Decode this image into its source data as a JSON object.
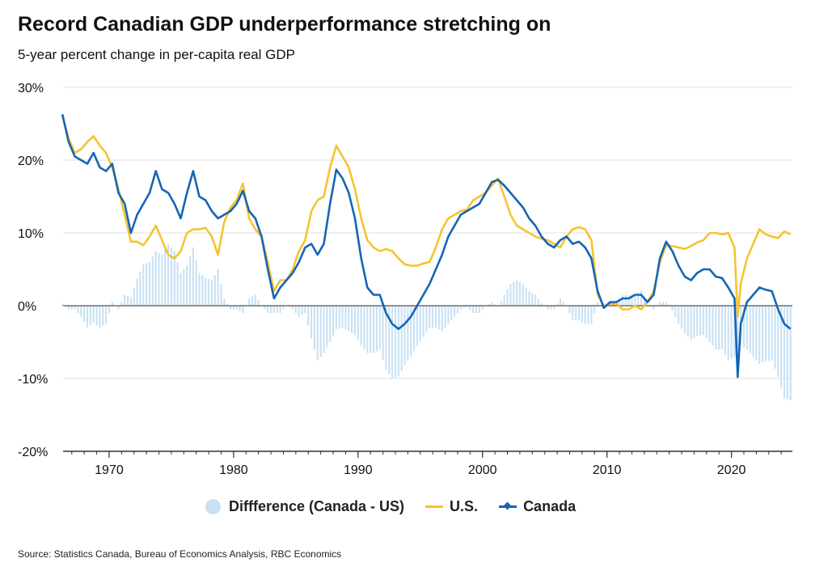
{
  "title": "Record Canadian GDP underperformance stretching on",
  "subtitle": "5-year percent change in per-capita real GDP",
  "source": "Source: Statistics Canada, Bureau of Economics Analysis, RBC Economics",
  "colors": {
    "us": "#f4c430",
    "canada": "#1565b5",
    "difference": "#c8e1f4",
    "zero_line": "#555555",
    "grid": "#e2e2e2"
  },
  "chart_data": {
    "type": "line",
    "grid": true,
    "legend_placement": "bottom",
    "xlim": [
      1966.3,
      1924.9
    ],
    "ylim": [
      -20,
      30
    ],
    "x_ticks": [
      1970,
      1980,
      1990,
      2000,
      2010,
      2020
    ],
    "x_tick_labels": [
      "1970",
      "1980",
      "1990",
      "2000",
      "2010",
      "2020"
    ],
    "y_ticks": [
      -20,
      -10,
      0,
      10,
      20,
      30
    ],
    "y_tick_labels": [
      "-20%",
      "-10%",
      "0%",
      "10%",
      "20%",
      "30%"
    ],
    "series": [
      {
        "name": "Diffference (Canada - US)",
        "kind": "bar",
        "color": "#c8e1f4",
        "derived_from": "Canada - U.S."
      },
      {
        "name": "U.S.",
        "kind": "line",
        "color": "#f4c430",
        "points": [
          [
            1966.25,
            26
          ],
          [
            1966.75,
            23
          ],
          [
            1967.25,
            21
          ],
          [
            1967.75,
            21.5
          ],
          [
            1968.25,
            22.5
          ],
          [
            1968.75,
            23.3
          ],
          [
            1969.25,
            22
          ],
          [
            1969.75,
            21
          ],
          [
            1970.25,
            19
          ],
          [
            1970.75,
            16
          ],
          [
            1971.25,
            12.5
          ],
          [
            1971.75,
            8.8
          ],
          [
            1972.25,
            8.8
          ],
          [
            1972.75,
            8.3
          ],
          [
            1973.25,
            9.5
          ],
          [
            1973.75,
            11
          ],
          [
            1974.25,
            9
          ],
          [
            1974.75,
            7
          ],
          [
            1975.25,
            6.5
          ],
          [
            1975.75,
            7.5
          ],
          [
            1976.25,
            10
          ],
          [
            1976.75,
            10.5
          ],
          [
            1977.25,
            10.5
          ],
          [
            1977.75,
            10.7
          ],
          [
            1978.25,
            9.5
          ],
          [
            1978.75,
            7
          ],
          [
            1979.25,
            11.5
          ],
          [
            1979.75,
            13.5
          ],
          [
            1980.25,
            14.5
          ],
          [
            1980.75,
            16.8
          ],
          [
            1981.25,
            12
          ],
          [
            1981.75,
            10.5
          ],
          [
            1982.25,
            9.5
          ],
          [
            1982.75,
            6
          ],
          [
            1983.25,
            2
          ],
          [
            1983.75,
            3.5
          ],
          [
            1984.25,
            3.5
          ],
          [
            1984.75,
            5
          ],
          [
            1985.25,
            7.5
          ],
          [
            1985.75,
            9
          ],
          [
            1986.25,
            13
          ],
          [
            1986.75,
            14.5
          ],
          [
            1987.25,
            15
          ],
          [
            1987.75,
            19
          ],
          [
            1988.25,
            22
          ],
          [
            1988.75,
            20.5
          ],
          [
            1989.25,
            19
          ],
          [
            1989.75,
            16
          ],
          [
            1990.25,
            12
          ],
          [
            1990.75,
            9
          ],
          [
            1991.25,
            8
          ],
          [
            1991.75,
            7.5
          ],
          [
            1992.25,
            7.8
          ],
          [
            1992.75,
            7.5
          ],
          [
            1993.25,
            6.5
          ],
          [
            1993.75,
            5.7
          ],
          [
            1994.25,
            5.5
          ],
          [
            1994.75,
            5.5
          ],
          [
            1995.25,
            5.8
          ],
          [
            1995.75,
            6
          ],
          [
            1996.25,
            8
          ],
          [
            1996.75,
            10.5
          ],
          [
            1997.25,
            12
          ],
          [
            1997.75,
            12.5
          ],
          [
            1998.25,
            13
          ],
          [
            1998.75,
            13.2
          ],
          [
            1999.25,
            14.5
          ],
          [
            1999.75,
            15
          ],
          [
            2000.25,
            15.5
          ],
          [
            2000.75,
            16.5
          ],
          [
            2001.25,
            17.5
          ],
          [
            2001.75,
            15
          ],
          [
            2002.25,
            12.5
          ],
          [
            2002.75,
            11
          ],
          [
            2003.25,
            10.5
          ],
          [
            2003.75,
            10
          ],
          [
            2004.25,
            9.5
          ],
          [
            2004.75,
            9.2
          ],
          [
            2005.25,
            9
          ],
          [
            2005.75,
            8.5
          ],
          [
            2006.25,
            8
          ],
          [
            2006.75,
            9.5
          ],
          [
            2007.25,
            10.5
          ],
          [
            2007.75,
            10.8
          ],
          [
            2008.25,
            10.5
          ],
          [
            2008.75,
            9
          ],
          [
            2009.25,
            1.5
          ],
          [
            2009.75,
            0
          ],
          [
            2010.25,
            0.2
          ],
          [
            2010.75,
            0.3
          ],
          [
            2011.25,
            -0.5
          ],
          [
            2011.75,
            -0.5
          ],
          [
            2012.25,
            0
          ],
          [
            2012.75,
            -0.5
          ],
          [
            2013.25,
            0.5
          ],
          [
            2013.75,
            2
          ],
          [
            2014.25,
            6
          ],
          [
            2014.75,
            8.3
          ],
          [
            2015.25,
            8.2
          ],
          [
            2015.75,
            8
          ],
          [
            2016.25,
            7.8
          ],
          [
            2016.75,
            8.2
          ],
          [
            2017.25,
            8.7
          ],
          [
            2017.75,
            9
          ],
          [
            2018.25,
            10
          ],
          [
            2018.75,
            10
          ],
          [
            2019.25,
            9.8
          ],
          [
            2019.75,
            10
          ],
          [
            2020.25,
            8
          ],
          [
            2020.5,
            -1.5
          ],
          [
            2020.75,
            3
          ],
          [
            2021.25,
            6.5
          ],
          [
            2021.75,
            8.5
          ],
          [
            2022.25,
            10.5
          ],
          [
            2022.75,
            9.8
          ],
          [
            2023.25,
            9.5
          ],
          [
            2023.75,
            9.3
          ],
          [
            2024.25,
            10.2
          ],
          [
            2024.75,
            9.8
          ]
        ]
      },
      {
        "name": "Canada",
        "kind": "line",
        "color": "#1565b5",
        "points": [
          [
            1966.25,
            26.3
          ],
          [
            1966.75,
            22.5
          ],
          [
            1967.25,
            20.5
          ],
          [
            1967.75,
            20
          ],
          [
            1968.25,
            19.5
          ],
          [
            1968.75,
            21
          ],
          [
            1969.25,
            19
          ],
          [
            1969.75,
            18.5
          ],
          [
            1970.25,
            19.5
          ],
          [
            1970.75,
            15.5
          ],
          [
            1971.25,
            14
          ],
          [
            1971.75,
            10
          ],
          [
            1972.25,
            12.5
          ],
          [
            1972.75,
            14
          ],
          [
            1973.25,
            15.5
          ],
          [
            1973.75,
            18.5
          ],
          [
            1974.25,
            16
          ],
          [
            1974.75,
            15.5
          ],
          [
            1975.25,
            14
          ],
          [
            1975.75,
            12
          ],
          [
            1976.25,
            15.5
          ],
          [
            1976.75,
            18.5
          ],
          [
            1977.25,
            15
          ],
          [
            1977.75,
            14.5
          ],
          [
            1978.25,
            13
          ],
          [
            1978.75,
            12
          ],
          [
            1979.25,
            12.5
          ],
          [
            1979.75,
            13
          ],
          [
            1980.25,
            14
          ],
          [
            1980.75,
            15.8
          ],
          [
            1981.25,
            13
          ],
          [
            1981.75,
            12
          ],
          [
            1982.25,
            9.5
          ],
          [
            1982.75,
            5
          ],
          [
            1983.25,
            1
          ],
          [
            1983.75,
            2.5
          ],
          [
            1984.25,
            3.5
          ],
          [
            1984.75,
            4.5
          ],
          [
            1985.25,
            6
          ],
          [
            1985.75,
            8
          ],
          [
            1986.25,
            8.5
          ],
          [
            1986.75,
            7
          ],
          [
            1987.25,
            8.5
          ],
          [
            1987.75,
            14
          ],
          [
            1988.25,
            18.7
          ],
          [
            1988.75,
            17.5
          ],
          [
            1989.25,
            15.5
          ],
          [
            1989.75,
            12
          ],
          [
            1990.25,
            6.5
          ],
          [
            1990.75,
            2.5
          ],
          [
            1991.25,
            1.5
          ],
          [
            1991.75,
            1.5
          ],
          [
            1992.25,
            -1
          ],
          [
            1992.75,
            -2.5
          ],
          [
            1993.25,
            -3.2
          ],
          [
            1993.75,
            -2.5
          ],
          [
            1994.25,
            -1.5
          ],
          [
            1994.75,
            0
          ],
          [
            1995.25,
            1.5
          ],
          [
            1995.75,
            3
          ],
          [
            1996.25,
            5
          ],
          [
            1996.75,
            7
          ],
          [
            1997.25,
            9.5
          ],
          [
            1997.75,
            11
          ],
          [
            1998.25,
            12.5
          ],
          [
            1998.75,
            13
          ],
          [
            1999.25,
            13.5
          ],
          [
            1999.75,
            14
          ],
          [
            2000.25,
            15.5
          ],
          [
            2000.75,
            17
          ],
          [
            2001.25,
            17.3
          ],
          [
            2001.75,
            16.5
          ],
          [
            2002.25,
            15.5
          ],
          [
            2002.75,
            14.5
          ],
          [
            2003.25,
            13.5
          ],
          [
            2003.75,
            12
          ],
          [
            2004.25,
            11
          ],
          [
            2004.75,
            9.5
          ],
          [
            2005.25,
            8.5
          ],
          [
            2005.75,
            8
          ],
          [
            2006.25,
            9
          ],
          [
            2006.75,
            9.5
          ],
          [
            2007.25,
            8.5
          ],
          [
            2007.75,
            8.8
          ],
          [
            2008.25,
            8
          ],
          [
            2008.75,
            6.5
          ],
          [
            2009.25,
            2
          ],
          [
            2009.75,
            -0.3
          ],
          [
            2010.25,
            0.5
          ],
          [
            2010.75,
            0.5
          ],
          [
            2011.25,
            1
          ],
          [
            2011.75,
            1
          ],
          [
            2012.25,
            1.5
          ],
          [
            2012.75,
            1.5
          ],
          [
            2013.25,
            0.5
          ],
          [
            2013.75,
            1.5
          ],
          [
            2014.25,
            6.5
          ],
          [
            2014.75,
            8.8
          ],
          [
            2015.25,
            7.5
          ],
          [
            2015.75,
            5.5
          ],
          [
            2016.25,
            4
          ],
          [
            2016.75,
            3.5
          ],
          [
            2017.25,
            4.5
          ],
          [
            2017.75,
            5
          ],
          [
            2018.25,
            5
          ],
          [
            2018.75,
            4
          ],
          [
            2019.25,
            3.8
          ],
          [
            2019.75,
            2.5
          ],
          [
            2020.25,
            1
          ],
          [
            2020.5,
            -9.8
          ],
          [
            2020.75,
            -2.5
          ],
          [
            2021.25,
            0.5
          ],
          [
            2021.75,
            1.5
          ],
          [
            2022.25,
            2.5
          ],
          [
            2022.75,
            2.2
          ],
          [
            2023.25,
            2
          ],
          [
            2023.75,
            -0.5
          ],
          [
            2024.25,
            -2.5
          ],
          [
            2024.75,
            -3.2
          ]
        ]
      }
    ]
  }
}
